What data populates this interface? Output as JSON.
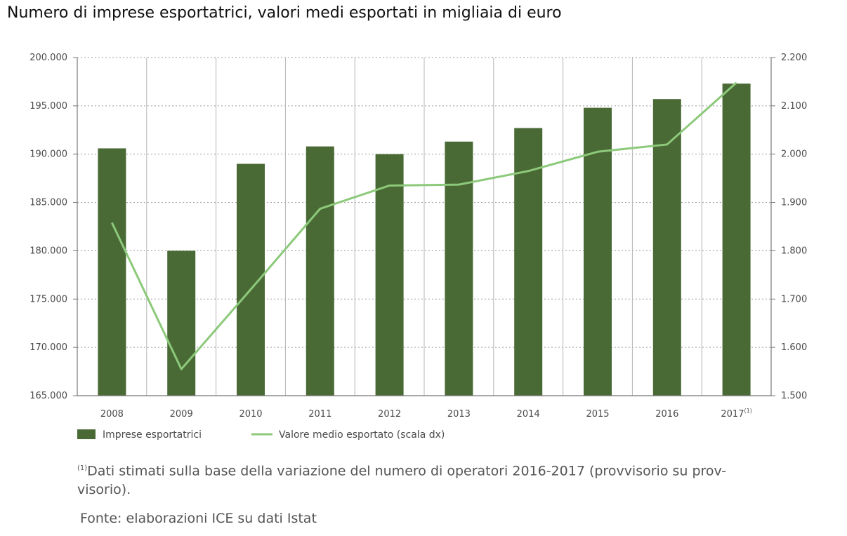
{
  "title": "Numero di imprese esportatrici, valori medi esportati in migliaia di euro",
  "chart_data": {
    "type": "bar",
    "title": "Numero di imprese esportatrici, valori medi esportati in migliaia di euro",
    "categories": [
      "2008",
      "2009",
      "2010",
      "2011",
      "2012",
      "2013",
      "2014",
      "2015",
      "2016",
      "2017"
    ],
    "last_category_superscript": "(1)",
    "series": [
      {
        "name": "Imprese esportatrici",
        "type": "bar",
        "axis": "left",
        "color": "#4a6a35",
        "values": [
          190600,
          180000,
          189000,
          190800,
          190000,
          191300,
          192700,
          194800,
          195700,
          197300
        ]
      },
      {
        "name": "Valore medio esportato (scala dx)",
        "type": "line",
        "axis": "right",
        "color": "#8cc97a",
        "values": [
          1858,
          1555,
          1720,
          1887,
          1935,
          1937,
          1965,
          2005,
          2020,
          2148
        ]
      }
    ],
    "y_left": {
      "ylim": [
        165000,
        200000
      ],
      "ticks": [
        "165.000",
        "170.000",
        "175.000",
        "180.000",
        "185.000",
        "190.000",
        "195.000",
        "200.000"
      ]
    },
    "y_right": {
      "ylim": [
        1500,
        2200
      ],
      "ticks": [
        "1.500",
        "1.600",
        "1.700",
        "1.800",
        "1.900",
        "2.000",
        "2.100",
        "2.200"
      ]
    },
    "grid": true,
    "legend": "bottom-left"
  },
  "footnote": {
    "marker": "(1)",
    "line1": "Dati stimati sulla base della variazione del numero di operatori 2016-2017 (provvisorio su prov-",
    "line2": "visorio)."
  },
  "source": "Fonte: elaborazioni ICE su dati Istat"
}
